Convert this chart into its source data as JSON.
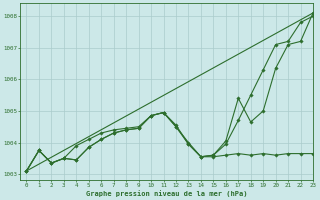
{
  "xlabel": "Graphe pression niveau de la mer (hPa)",
  "bg_color": "#cce8e8",
  "grid_color": "#aacccc",
  "line_color": "#2d6e2d",
  "xlim": [
    -0.5,
    23
  ],
  "ylim": [
    1002.8,
    1008.4
  ],
  "yticks": [
    1003,
    1004,
    1005,
    1006,
    1007,
    1008
  ],
  "xticks": [
    0,
    1,
    2,
    3,
    4,
    5,
    6,
    7,
    8,
    9,
    10,
    11,
    12,
    13,
    14,
    15,
    16,
    17,
    18,
    19,
    20,
    21,
    22,
    23
  ],
  "line1_x": [
    0,
    1,
    2,
    3,
    4,
    5,
    6,
    7,
    8,
    9,
    10,
    11,
    12,
    13,
    14,
    15,
    16,
    17,
    18,
    19,
    20,
    21,
    22,
    23
  ],
  "line1_y": [
    1003.1,
    1003.75,
    1003.35,
    1003.5,
    1003.45,
    1003.85,
    1004.1,
    1004.3,
    1004.4,
    1004.45,
    1004.85,
    1004.95,
    1004.5,
    1004.0,
    1003.55,
    1003.6,
    1003.95,
    1004.7,
    1005.5,
    1006.3,
    1007.1,
    1007.2,
    1007.8,
    1008.0
  ],
  "line2_x": [
    0,
    1,
    2,
    3,
    4,
    5,
    6,
    7,
    8,
    9,
    10,
    11,
    12,
    13,
    14,
    15,
    16,
    17,
    18,
    19,
    20,
    21,
    22,
    23
  ],
  "line2_y": [
    1003.1,
    1003.75,
    1003.35,
    1003.5,
    1003.45,
    1003.85,
    1004.1,
    1004.3,
    1004.4,
    1004.45,
    1004.85,
    1004.95,
    1004.5,
    1003.95,
    1003.55,
    1003.55,
    1003.6,
    1003.65,
    1003.6,
    1003.65,
    1003.6,
    1003.65,
    1003.65,
    1003.65
  ],
  "line3_x": [
    0,
    1,
    2,
    3,
    4,
    5,
    6,
    7,
    8,
    9,
    10,
    11,
    12,
    13,
    14,
    15,
    16,
    17,
    18,
    19,
    20,
    21,
    22,
    23
  ],
  "line3_y": [
    1003.1,
    1003.75,
    1003.35,
    1003.5,
    1003.9,
    1004.1,
    1004.3,
    1004.4,
    1004.45,
    1004.5,
    1004.85,
    1004.95,
    1004.55,
    1003.95,
    1003.55,
    1003.6,
    1004.05,
    1005.4,
    1004.65,
    1005.0,
    1006.35,
    1007.1,
    1007.2,
    1008.1
  ],
  "line4_x": [
    0,
    23
  ],
  "line4_y": [
    1003.1,
    1008.1
  ],
  "lw": 0.8,
  "ms": 1.8
}
